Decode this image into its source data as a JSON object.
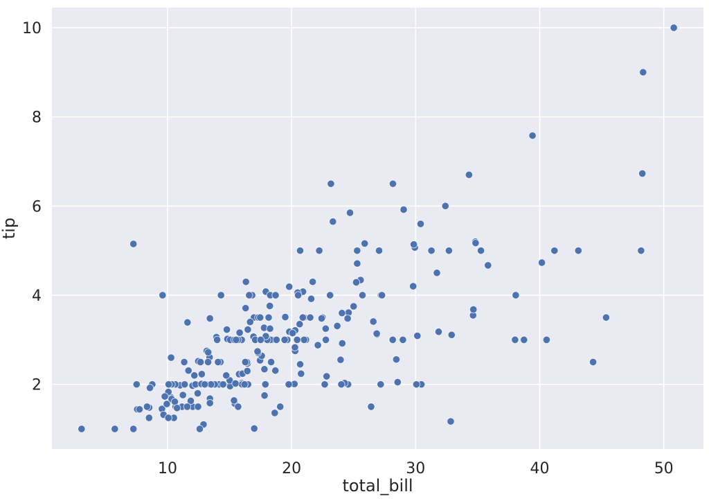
{
  "figure": {
    "background_color": "#ffffff"
  },
  "chart_data": {
    "type": "scatter",
    "title": "",
    "xlabel": "total_bill",
    "ylabel": "tip",
    "xlim": [
      0.683,
      53.197
    ],
    "ylim": [
      0.55,
      10.45
    ],
    "xticks": [
      10,
      20,
      30,
      40,
      50
    ],
    "yticks": [
      2,
      4,
      6,
      8,
      10
    ],
    "grid": true,
    "legend_position": "none",
    "style": {
      "axes_background": "#eaeaf2",
      "grid_color": "#ffffff",
      "point_color": "#4c72b0",
      "point_edge_color": "#ffffff",
      "text_color": "#262626",
      "point_radius": 5.2
    },
    "points": [
      [
        16.99,
        1.01
      ],
      [
        10.34,
        1.66
      ],
      [
        21.01,
        3.5
      ],
      [
        23.68,
        3.31
      ],
      [
        24.59,
        3.61
      ],
      [
        25.29,
        4.71
      ],
      [
        8.77,
        2.0
      ],
      [
        26.88,
        3.12
      ],
      [
        15.04,
        1.96
      ],
      [
        14.78,
        3.23
      ],
      [
        10.27,
        1.71
      ],
      [
        35.26,
        5.0
      ],
      [
        15.42,
        1.57
      ],
      [
        18.43,
        3.0
      ],
      [
        14.83,
        3.02
      ],
      [
        21.58,
        3.92
      ],
      [
        10.33,
        1.67
      ],
      [
        16.29,
        3.71
      ],
      [
        16.97,
        3.5
      ],
      [
        20.65,
        3.35
      ],
      [
        17.92,
        4.08
      ],
      [
        20.29,
        2.75
      ],
      [
        15.77,
        2.23
      ],
      [
        39.42,
        7.58
      ],
      [
        19.82,
        3.18
      ],
      [
        17.81,
        2.34
      ],
      [
        13.37,
        2.0
      ],
      [
        12.69,
        2.0
      ],
      [
        21.7,
        4.3
      ],
      [
        19.65,
        3.0
      ],
      [
        9.55,
        1.45
      ],
      [
        18.35,
        2.5
      ],
      [
        15.06,
        3.0
      ],
      [
        20.69,
        2.45
      ],
      [
        17.78,
        3.27
      ],
      [
        24.06,
        3.6
      ],
      [
        16.31,
        2.0
      ],
      [
        16.93,
        3.07
      ],
      [
        18.69,
        2.31
      ],
      [
        31.27,
        5.0
      ],
      [
        16.04,
        2.24
      ],
      [
        17.46,
        2.54
      ],
      [
        13.94,
        3.06
      ],
      [
        9.68,
        1.32
      ],
      [
        30.4,
        5.6
      ],
      [
        18.29,
        3.0
      ],
      [
        22.23,
        5.0
      ],
      [
        32.4,
        6.0
      ],
      [
        28.55,
        2.05
      ],
      [
        18.04,
        3.0
      ],
      [
        12.54,
        2.5
      ],
      [
        10.29,
        2.6
      ],
      [
        34.81,
        5.2
      ],
      [
        9.94,
        1.56
      ],
      [
        25.56,
        4.34
      ],
      [
        19.49,
        3.51
      ],
      [
        38.01,
        3.0
      ],
      [
        26.41,
        1.5
      ],
      [
        11.24,
        1.76
      ],
      [
        48.27,
        6.73
      ],
      [
        20.29,
        3.21
      ],
      [
        13.81,
        2.0
      ],
      [
        11.02,
        1.98
      ],
      [
        18.29,
        3.76
      ],
      [
        17.59,
        2.64
      ],
      [
        20.08,
        3.15
      ],
      [
        16.45,
        2.47
      ],
      [
        3.07,
        1.0
      ],
      [
        20.23,
        2.01
      ],
      [
        15.01,
        2.09
      ],
      [
        12.02,
        1.97
      ],
      [
        17.07,
        3.0
      ],
      [
        26.86,
        3.14
      ],
      [
        25.28,
        5.0
      ],
      [
        14.73,
        2.2
      ],
      [
        10.51,
        1.25
      ],
      [
        17.92,
        3.08
      ],
      [
        27.2,
        4.0
      ],
      [
        22.76,
        3.0
      ],
      [
        17.29,
        2.71
      ],
      [
        19.44,
        3.0
      ],
      [
        16.66,
        3.4
      ],
      [
        10.07,
        1.83
      ],
      [
        32.68,
        5.0
      ],
      [
        15.98,
        2.03
      ],
      [
        34.83,
        5.17
      ],
      [
        13.03,
        2.0
      ],
      [
        18.28,
        4.0
      ],
      [
        24.71,
        5.85
      ],
      [
        21.16,
        3.0
      ],
      [
        28.97,
        3.0
      ],
      [
        22.49,
        3.5
      ],
      [
        5.75,
        1.0
      ],
      [
        16.32,
        4.3
      ],
      [
        22.75,
        3.25
      ],
      [
        40.17,
        4.73
      ],
      [
        27.28,
        4.0
      ],
      [
        12.03,
        1.5
      ],
      [
        21.01,
        3.0
      ],
      [
        12.46,
        1.5
      ],
      [
        11.35,
        2.5
      ],
      [
        15.38,
        3.0
      ],
      [
        44.3,
        2.5
      ],
      [
        22.42,
        3.48
      ],
      [
        20.92,
        4.08
      ],
      [
        15.36,
        1.64
      ],
      [
        20.49,
        4.06
      ],
      [
        25.21,
        4.29
      ],
      [
        18.24,
        3.76
      ],
      [
        14.31,
        4.0
      ],
      [
        14.0,
        3.0
      ],
      [
        7.25,
        1.0
      ],
      [
        38.07,
        4.0
      ],
      [
        23.95,
        2.55
      ],
      [
        25.71,
        4.0
      ],
      [
        17.31,
        3.5
      ],
      [
        29.93,
        5.07
      ],
      [
        10.65,
        1.5
      ],
      [
        12.43,
        1.8
      ],
      [
        24.08,
        2.92
      ],
      [
        11.69,
        2.31
      ],
      [
        13.42,
        1.68
      ],
      [
        14.26,
        2.5
      ],
      [
        15.95,
        2.0
      ],
      [
        12.48,
        2.52
      ],
      [
        29.8,
        4.2
      ],
      [
        8.52,
        1.48
      ],
      [
        14.52,
        2.0
      ],
      [
        11.38,
        2.0
      ],
      [
        22.82,
        2.18
      ],
      [
        19.08,
        1.5
      ],
      [
        20.27,
        2.83
      ],
      [
        11.17,
        1.5
      ],
      [
        12.26,
        2.0
      ],
      [
        18.26,
        3.25
      ],
      [
        8.51,
        1.25
      ],
      [
        10.33,
        2.0
      ],
      [
        14.15,
        2.0
      ],
      [
        16.0,
        2.0
      ],
      [
        13.16,
        2.75
      ],
      [
        17.47,
        3.5
      ],
      [
        34.3,
        6.7
      ],
      [
        41.19,
        5.0
      ],
      [
        27.05,
        5.0
      ],
      [
        16.43,
        2.3
      ],
      [
        8.35,
        1.5
      ],
      [
        18.64,
        1.36
      ],
      [
        11.87,
        1.63
      ],
      [
        9.78,
        1.73
      ],
      [
        7.51,
        2.0
      ],
      [
        14.07,
        2.5
      ],
      [
        13.13,
        2.0
      ],
      [
        17.26,
        2.74
      ],
      [
        24.55,
        2.0
      ],
      [
        19.77,
        2.0
      ],
      [
        29.85,
        5.14
      ],
      [
        48.17,
        5.0
      ],
      [
        25.0,
        3.75
      ],
      [
        13.39,
        2.61
      ],
      [
        16.49,
        2.0
      ],
      [
        21.5,
        3.5
      ],
      [
        12.66,
        2.5
      ],
      [
        16.21,
        2.0
      ],
      [
        13.81,
        2.0
      ],
      [
        17.51,
        3.0
      ],
      [
        24.52,
        3.48
      ],
      [
        20.76,
        2.24
      ],
      [
        31.71,
        4.5
      ],
      [
        10.59,
        1.61
      ],
      [
        10.63,
        2.0
      ],
      [
        50.81,
        10.0
      ],
      [
        15.81,
        3.16
      ],
      [
        7.25,
        5.15
      ],
      [
        31.85,
        3.18
      ],
      [
        16.82,
        4.0
      ],
      [
        32.9,
        3.11
      ],
      [
        17.89,
        2.0
      ],
      [
        14.48,
        2.0
      ],
      [
        9.6,
        4.0
      ],
      [
        34.63,
        3.55
      ],
      [
        34.65,
        3.68
      ],
      [
        23.33,
        5.65
      ],
      [
        45.35,
        3.5
      ],
      [
        23.17,
        6.5
      ],
      [
        40.55,
        3.0
      ],
      [
        20.69,
        5.0
      ],
      [
        20.9,
        3.5
      ],
      [
        30.46,
        2.0
      ],
      [
        18.15,
        3.5
      ],
      [
        23.1,
        4.0
      ],
      [
        15.69,
        1.5
      ],
      [
        19.81,
        4.19
      ],
      [
        28.44,
        2.56
      ],
      [
        15.48,
        2.02
      ],
      [
        16.58,
        4.0
      ],
      [
        7.56,
        1.44
      ],
      [
        10.34,
        2.0
      ],
      [
        43.11,
        5.0
      ],
      [
        13.0,
        2.0
      ],
      [
        13.51,
        2.0
      ],
      [
        18.71,
        4.0
      ],
      [
        12.74,
        2.01
      ],
      [
        13.0,
        2.0
      ],
      [
        16.4,
        2.5
      ],
      [
        20.53,
        4.0
      ],
      [
        16.47,
        3.23
      ],
      [
        26.59,
        3.41
      ],
      [
        38.73,
        3.0
      ],
      [
        24.27,
        2.03
      ],
      [
        12.76,
        2.23
      ],
      [
        30.06,
        2.0
      ],
      [
        25.89,
        5.16
      ],
      [
        48.33,
        9.0
      ],
      [
        13.27,
        2.5
      ],
      [
        28.17,
        6.5
      ],
      [
        12.9,
        1.1
      ],
      [
        28.15,
        3.0
      ],
      [
        11.59,
        1.5
      ],
      [
        7.74,
        1.44
      ],
      [
        30.14,
        3.09
      ],
      [
        12.16,
        2.2
      ],
      [
        13.42,
        3.48
      ],
      [
        8.58,
        1.92
      ],
      [
        15.98,
        3.0
      ],
      [
        13.42,
        1.58
      ],
      [
        16.27,
        2.5
      ],
      [
        10.09,
        2.0
      ],
      [
        20.45,
        3.0
      ],
      [
        13.28,
        2.72
      ],
      [
        22.12,
        2.88
      ],
      [
        24.01,
        2.0
      ],
      [
        15.69,
        3.0
      ],
      [
        11.61,
        3.39
      ],
      [
        10.77,
        1.47
      ],
      [
        15.53,
        3.0
      ],
      [
        10.07,
        1.25
      ],
      [
        12.6,
        1.0
      ],
      [
        32.83,
        1.17
      ],
      [
        35.83,
        4.67
      ],
      [
        29.03,
        5.92
      ],
      [
        27.18,
        2.0
      ],
      [
        22.67,
        2.0
      ],
      [
        17.82,
        1.75
      ],
      [
        18.78,
        3.0
      ]
    ]
  }
}
